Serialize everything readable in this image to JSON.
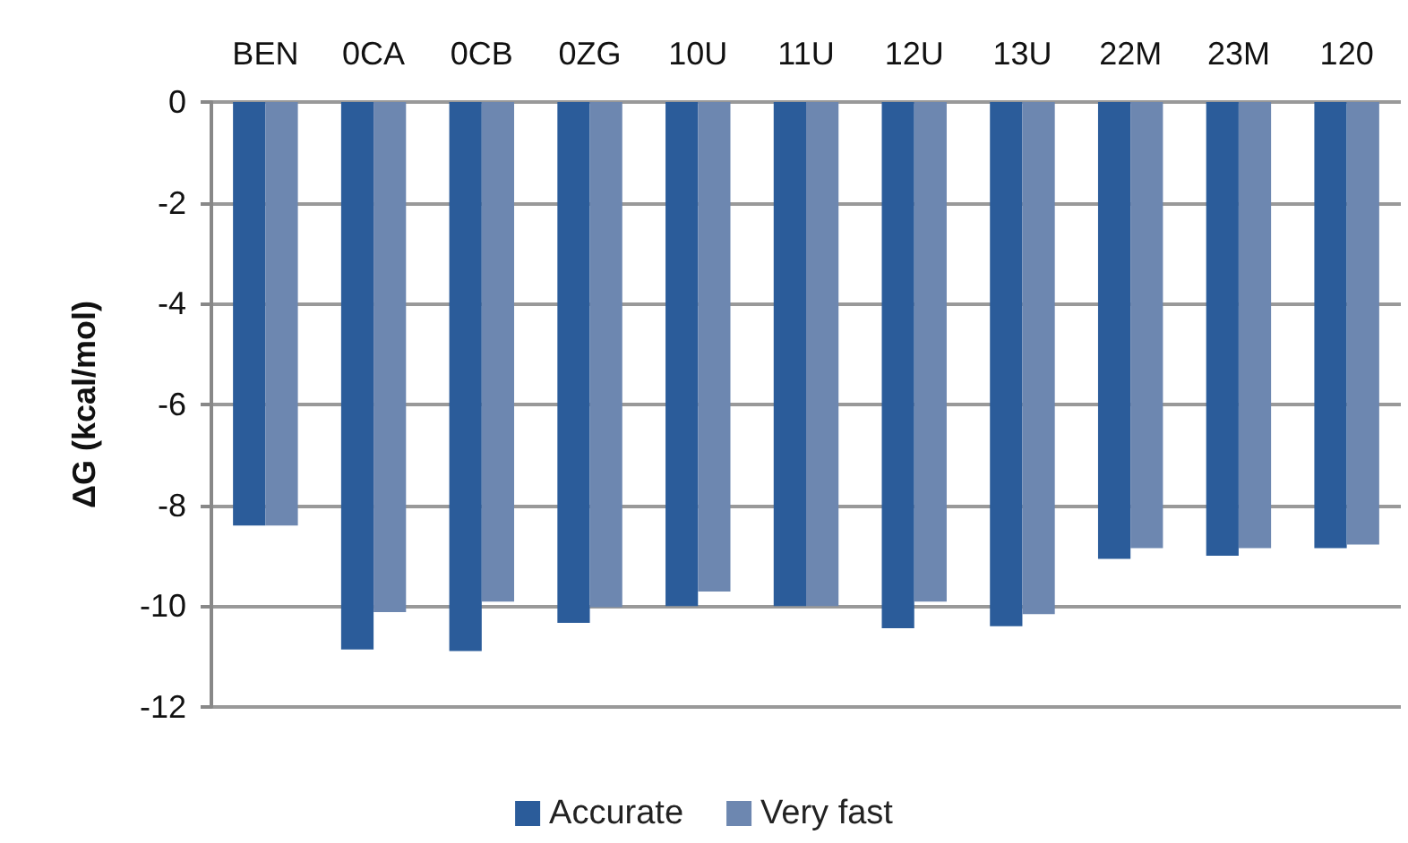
{
  "chart_data": {
    "type": "bar",
    "ylabel": "ΔG (kcal/mol)",
    "categories": [
      "BEN",
      "0CA",
      "0CB",
      "0ZG",
      "10U",
      "11U",
      "12U",
      "13U",
      "22M",
      "23M",
      "120"
    ],
    "series": [
      {
        "name": "Accurate",
        "color": "#2b5c9a",
        "values": [
          -8.4,
          -10.86,
          -10.89,
          -10.33,
          -10.0,
          -10.0,
          -10.44,
          -10.4,
          -9.06,
          -9.0,
          -8.85
        ]
      },
      {
        "name": "Very fast",
        "color": "#6d87b0",
        "values": [
          -8.4,
          -10.12,
          -9.91,
          -10.02,
          -9.71,
          -10.0,
          -9.91,
          -10.16,
          -8.85,
          -8.85,
          -8.78
        ]
      }
    ],
    "ylim": [
      -12,
      0
    ],
    "yticks": [
      0,
      -2,
      -4,
      -6,
      -8,
      -10,
      -12
    ],
    "grid": "y",
    "legend": "bottom"
  }
}
